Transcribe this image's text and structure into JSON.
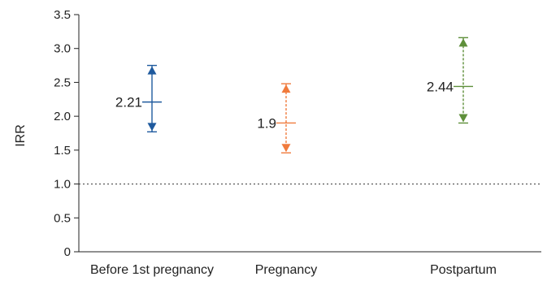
{
  "chart_data": {
    "type": "errorbar",
    "title": "",
    "xlabel": "",
    "ylabel": "IRR",
    "ylim": [
      0,
      3.5
    ],
    "yticks": [
      "0",
      "0.5",
      "1.0",
      "1.5",
      "2.0",
      "2.5",
      "3.0",
      "3.5"
    ],
    "ytick_values": [
      0,
      0.5,
      1.0,
      1.5,
      2.0,
      2.5,
      3.0,
      3.5
    ],
    "reference_line": {
      "value": 1.0,
      "style": "dotted"
    },
    "categories": [
      "Before 1st pregnancy",
      "Pregnancy",
      "Postpartum"
    ],
    "points": [
      {
        "category": "Before 1st pregnancy",
        "estimate": 2.21,
        "lower": 1.77,
        "upper": 2.75,
        "label": "2.21",
        "color": "#1f5a9e",
        "style": "solid"
      },
      {
        "category": "Pregnancy",
        "estimate": 1.9,
        "lower": 1.46,
        "upper": 2.48,
        "label": "1.9",
        "color": "#f07a3c",
        "style": "dashed"
      },
      {
        "category": "Postpartum",
        "estimate": 2.44,
        "lower": 1.9,
        "upper": 3.16,
        "label": "2.44",
        "color": "#5e8f3a",
        "style": "dashed"
      }
    ],
    "grid": false,
    "legend": "none"
  }
}
